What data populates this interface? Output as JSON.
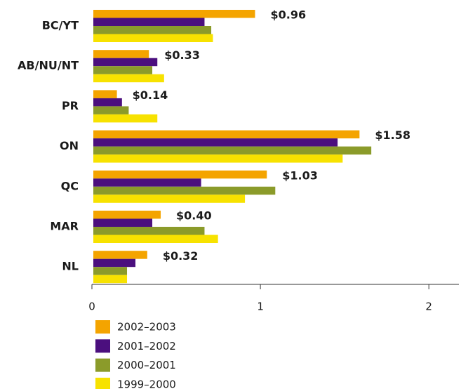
{
  "chart_data": {
    "type": "hbar",
    "categories": [
      "BC/YT",
      "AB/NU/NT",
      "PR",
      "ON",
      "QC",
      "MAR",
      "NL"
    ],
    "series": [
      {
        "name": "2002–2003",
        "color": "#f4a400",
        "values": [
          0.96,
          0.33,
          0.14,
          1.58,
          1.03,
          0.4,
          0.32
        ],
        "value_labels": [
          "$0.96",
          "$0.33",
          "$0.14",
          "$1.58",
          "$1.03",
          "$0.40",
          "$0.32"
        ]
      },
      {
        "name": "2001–2002",
        "color": "#4b0f7e",
        "values": [
          0.66,
          0.38,
          0.17,
          1.45,
          0.64,
          0.35,
          0.25
        ]
      },
      {
        "name": "2000–2001",
        "color": "#8b9b2a",
        "values": [
          0.7,
          0.35,
          0.21,
          1.65,
          1.08,
          0.66,
          0.2
        ]
      },
      {
        "name": "1999–2000",
        "color": "#f7e200",
        "values": [
          0.71,
          0.42,
          0.38,
          1.48,
          0.9,
          0.74,
          0.2
        ]
      }
    ],
    "xlim": [
      0,
      2.17
    ],
    "xticks": [
      0,
      1,
      2
    ]
  }
}
